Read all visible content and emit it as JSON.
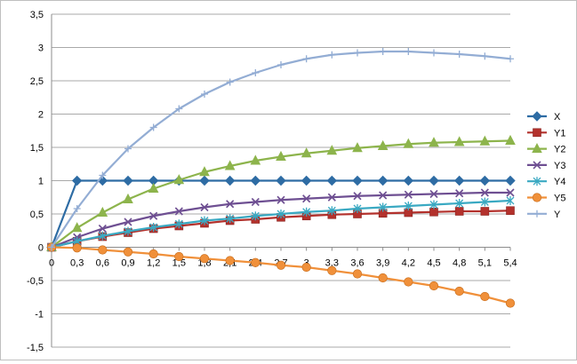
{
  "chart_data": {
    "type": "line",
    "title": "",
    "xlabel": "",
    "ylabel": "",
    "x": [
      0,
      0.3,
      0.6,
      0.9,
      1.2,
      1.5,
      1.8,
      2.1,
      2.4,
      2.7,
      3,
      3.3,
      3.6,
      3.9,
      4.2,
      4.5,
      4.8,
      5.1,
      5.4
    ],
    "x_tick_labels": [
      "0",
      "0,3",
      "0,6",
      "0,9",
      "1,2",
      "1,5",
      "1,8",
      "2,1",
      "2,4",
      "2,7",
      "3",
      "3,3",
      "3,6",
      "3,9",
      "4,2",
      "4,5",
      "4,8",
      "5,1",
      "5,4"
    ],
    "ylim": [
      -1.5,
      3.5
    ],
    "y_tick_values": [
      3.5,
      3,
      2.5,
      2,
      1.5,
      1,
      0.5,
      0,
      -0.5,
      -1,
      -1.5
    ],
    "y_tick_labels": [
      "3,5",
      "3",
      "2,5",
      "2",
      "1,5",
      "1",
      "0,5",
      "0",
      "-0,5",
      "-1",
      "-1,5"
    ],
    "grid": "horizontal",
    "legend_position": "right",
    "series": [
      {
        "name": "X",
        "color": "#2e6ca4",
        "marker": "diamond",
        "values": [
          0,
          1,
          1,
          1,
          1,
          1,
          1,
          1,
          1,
          1,
          1,
          1,
          1,
          1,
          1,
          1,
          1,
          1,
          1
        ]
      },
      {
        "name": "Y1",
        "color": "#b3312c",
        "marker": "square",
        "values": [
          0,
          0.09,
          0.16,
          0.22,
          0.28,
          0.32,
          0.36,
          0.4,
          0.42,
          0.45,
          0.47,
          0.49,
          0.5,
          0.51,
          0.52,
          0.53,
          0.54,
          0.54,
          0.55
        ]
      },
      {
        "name": "Y2",
        "color": "#8db44c",
        "marker": "triangle",
        "values": [
          0,
          0.29,
          0.52,
          0.72,
          0.88,
          1.01,
          1.13,
          1.22,
          1.3,
          1.36,
          1.41,
          1.45,
          1.49,
          1.52,
          1.55,
          1.57,
          1.58,
          1.59,
          1.6
        ]
      },
      {
        "name": "Y3",
        "color": "#6e4f92",
        "marker": "x",
        "values": [
          0,
          0.15,
          0.28,
          0.38,
          0.47,
          0.54,
          0.6,
          0.65,
          0.68,
          0.71,
          0.73,
          0.75,
          0.77,
          0.78,
          0.79,
          0.8,
          0.81,
          0.82,
          0.82
        ]
      },
      {
        "name": "Y4",
        "color": "#3aa9c2",
        "marker": "star",
        "values": [
          0,
          0.09,
          0.17,
          0.24,
          0.3,
          0.35,
          0.4,
          0.43,
          0.47,
          0.5,
          0.53,
          0.55,
          0.58,
          0.6,
          0.62,
          0.64,
          0.66,
          0.68,
          0.7
        ]
      },
      {
        "name": "Y5",
        "color": "#f0903a",
        "marker": "circle",
        "values": [
          0,
          -0.01,
          -0.04,
          -0.07,
          -0.1,
          -0.14,
          -0.17,
          -0.2,
          -0.23,
          -0.27,
          -0.3,
          -0.35,
          -0.4,
          -0.46,
          -0.52,
          -0.58,
          -0.66,
          -0.74,
          -0.84
        ]
      },
      {
        "name": "Y",
        "color": "#93add4",
        "marker": "plus",
        "values": [
          0,
          0.58,
          1.08,
          1.48,
          1.8,
          2.08,
          2.3,
          2.48,
          2.62,
          2.74,
          2.83,
          2.89,
          2.92,
          2.94,
          2.94,
          2.92,
          2.9,
          2.87,
          2.83
        ]
      }
    ]
  }
}
